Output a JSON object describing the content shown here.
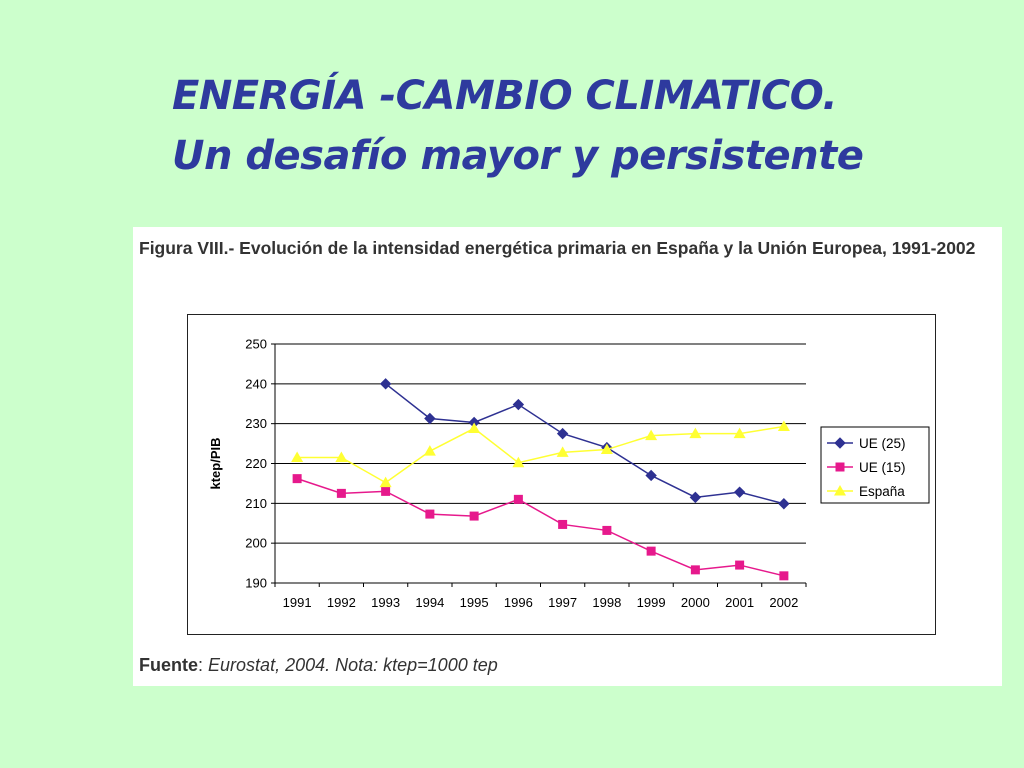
{
  "slide": {
    "title_line1": "ENERGÍA -CAMBIO CLIMATICO.",
    "title_line2": "Un desafío mayor y persistente"
  },
  "figure": {
    "caption_prefix": "Figura VIII",
    "caption_text": ".- Evolución de la intensidad energética primaria en España y la Unión Europea, 1991-2002",
    "source_label": "Fuente",
    "source_sep": ": ",
    "source_text": "Eurostat, 2004. Nota: ktep=1000 tep"
  },
  "chart_data": {
    "type": "line",
    "title": "",
    "xlabel": "",
    "ylabel": "ktep/PIB",
    "ylim": [
      190,
      250
    ],
    "yticks": [
      190,
      200,
      210,
      220,
      230,
      240,
      250
    ],
    "grid": true,
    "legend_position": "right",
    "categories": [
      "1991",
      "1992",
      "1993",
      "1994",
      "1995",
      "1996",
      "1997",
      "1998",
      "1999",
      "2000",
      "2001",
      "2002"
    ],
    "series": [
      {
        "name": "UE (25)",
        "color": "#2e3192",
        "marker": "diamond",
        "values": [
          null,
          null,
          240.0,
          231.3,
          230.3,
          234.8,
          227.5,
          224.0,
          217.0,
          211.5,
          212.8,
          209.9
        ]
      },
      {
        "name": "UE (15)",
        "color": "#e6198c",
        "marker": "square",
        "values": [
          216.2,
          212.5,
          213.0,
          207.3,
          206.8,
          211.0,
          204.7,
          203.2,
          198.0,
          193.3,
          194.5,
          191.8
        ]
      },
      {
        "name": "España",
        "color": "#ffff33",
        "marker": "triangle",
        "values": [
          221.5,
          221.5,
          215.2,
          223.1,
          228.8,
          220.2,
          222.8,
          223.5,
          227.0,
          227.5,
          227.5,
          229.3
        ]
      }
    ]
  }
}
